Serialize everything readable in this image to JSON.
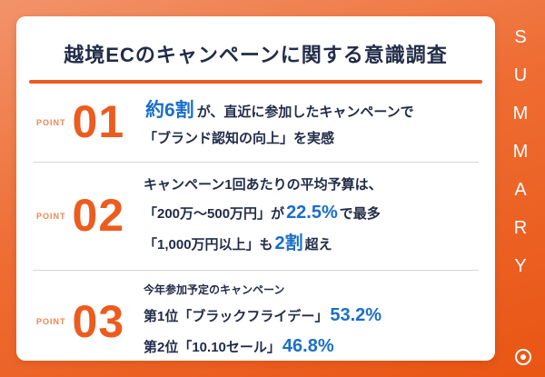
{
  "colors": {
    "bg1": "#F2936A",
    "bg2": "#E95513",
    "accent": "#EC5C1F",
    "accent_light": "#F0854F",
    "navy": "#222C49",
    "blue": "#1B6EC8",
    "divider": "#D8D8D8"
  },
  "title": "越境ECのキャンペーンに関する意識調査",
  "sidebar": {
    "label": "SUMMARY",
    "icon": "target-icon"
  },
  "points": [
    {
      "label": "POINT",
      "number": "01",
      "seg": {
        "em1": "約6割",
        "t1": "が、直近に参加したキャンペーンで",
        "t2": "「ブランド認知の向上」を実感"
      }
    },
    {
      "label": "POINT",
      "number": "02",
      "seg": {
        "t1": "キャンペーン1回あたりの平均予算は、",
        "t2": "「200万〜500万円」が",
        "em1": "22.5%",
        "t3": "で最多",
        "t4": "「1,000万円以上」も",
        "em2": "2割",
        "t5": "超え"
      }
    },
    {
      "label": "POINT",
      "number": "03",
      "seg": {
        "note": "今年参加予定のキャンペーン",
        "t1": "第1位「ブラックフライデー」",
        "em1": "53.2%",
        "t2": "第2位「10.10セール」",
        "em2": "46.8%"
      }
    }
  ]
}
